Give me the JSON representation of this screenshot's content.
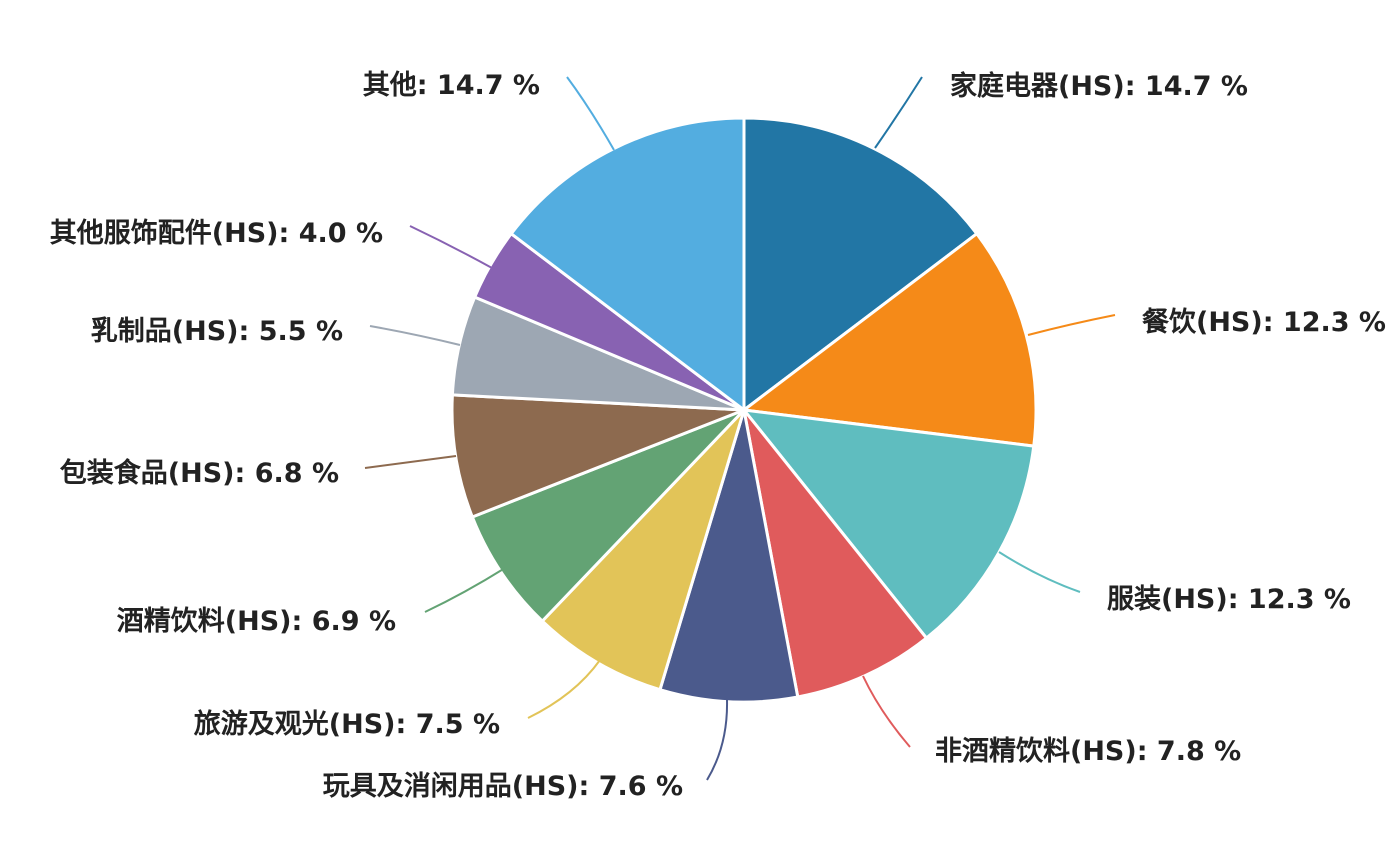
{
  "chart_data": {
    "type": "pie",
    "title": "",
    "label_format": "{name}: {value} %",
    "start_angle_deg": 0,
    "direction": "clockwise",
    "slices": [
      {
        "name": "家庭电器(HS)",
        "value": 14.7,
        "color": "#2276A5"
      },
      {
        "name": "餐饮(HS)",
        "value": 12.3,
        "color": "#F58A18"
      },
      {
        "name": "服装(HS)",
        "value": 12.3,
        "color": "#5FBDBF"
      },
      {
        "name": "非酒精饮料(HS)",
        "value": 7.8,
        "color": "#E05B5C"
      },
      {
        "name": "玩具及消闲用品(HS)",
        "value": 7.6,
        "color": "#4B5A8C"
      },
      {
        "name": "旅游及观光(HS)",
        "value": 7.5,
        "color": "#E2C458"
      },
      {
        "name": "酒精饮料(HS)",
        "value": 6.9,
        "color": "#63A374"
      },
      {
        "name": "包装食品(HS)",
        "value": 6.8,
        "color": "#8D6A4F"
      },
      {
        "name": "乳制品(HS)",
        "value": 5.5,
        "color": "#9DA7B3"
      },
      {
        "name": "其他服饰配件(HS)",
        "value": 4.0,
        "color": "#8862B2"
      },
      {
        "name": "其他",
        "value": 14.7,
        "color": "#53ADE0"
      }
    ]
  }
}
